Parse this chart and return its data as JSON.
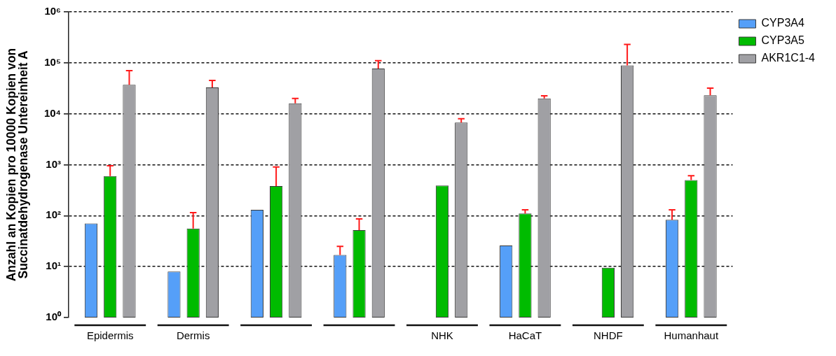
{
  "chart_data": {
    "type": "bar",
    "ylabel": "Anzahl an Kopien pro 10000 Kopien von Succinatdehydrogenase Untereinheit A",
    "categories": [
      "Epidermis",
      "Dermis",
      null,
      null,
      "NHK",
      "HaCaT",
      "NHDF",
      "Humanhaut"
    ],
    "series": [
      {
        "name": "CYP3A4",
        "color": "#559ff8",
        "values": [
          70,
          8,
          130,
          17,
          null,
          26,
          null,
          83
        ],
        "errors": [
          null,
          null,
          null,
          [
            17,
            25
          ],
          null,
          null,
          null,
          [
            83,
            130
          ]
        ]
      },
      {
        "name": "CYP3A5",
        "color": "#00bb00",
        "values": [
          600,
          56,
          380,
          52,
          390,
          110,
          9.5,
          500
        ],
        "errors": [
          [
            600,
            950
          ],
          [
            56,
            115
          ],
          [
            380,
            900
          ],
          [
            52,
            86
          ],
          null,
          [
            110,
            130
          ],
          null,
          [
            500,
            610
          ]
        ]
      },
      {
        "name": "AKR1C1-4",
        "color": "#a0a0a4",
        "values": [
          37000,
          33000,
          16000,
          77000,
          6700,
          20000,
          89000,
          23000
        ],
        "errors": [
          [
            37000,
            70000
          ],
          [
            33000,
            45000
          ],
          [
            16000,
            20000
          ],
          [
            77000,
            110000
          ],
          [
            6700,
            8000
          ],
          [
            20000,
            22600
          ],
          [
            89000,
            230000
          ],
          [
            23000,
            32000
          ]
        ]
      }
    ],
    "log": true,
    "ylim": [
      1,
      1000000
    ],
    "yticks": [
      {
        "value": 1,
        "label": "10⁰"
      },
      {
        "value": 10,
        "label": "10¹"
      },
      {
        "value": 100,
        "label": "10²"
      },
      {
        "value": 1000,
        "label": "10³"
      },
      {
        "value": 10000,
        "label": "10⁴"
      },
      {
        "value": 100000,
        "label": "10⁵"
      },
      {
        "value": 1000000,
        "label": "10⁶"
      }
    ],
    "grid": "y",
    "legend": "top right"
  }
}
